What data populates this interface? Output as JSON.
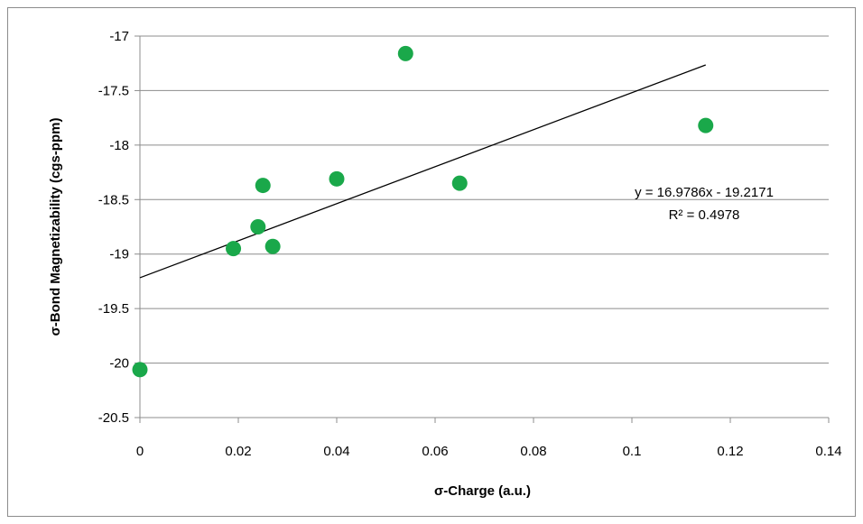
{
  "chart_data": {
    "type": "scatter",
    "title": "",
    "xlabel": "σ-Charge (a.u.)",
    "ylabel": "σ-Bond Magnetizability (cgs-ppm)",
    "xlim": [
      0,
      0.14
    ],
    "ylim": [
      -20.5,
      -17
    ],
    "x_ticks": [
      "0",
      "0.02",
      "0.04",
      "0.06",
      "0.08",
      "0.1",
      "0.12",
      "0.14"
    ],
    "y_ticks": [
      "-17",
      "-17.5",
      "-18",
      "-18.5",
      "-19",
      "-19.5",
      "-20",
      "-20.5"
    ],
    "grid": "horizontal",
    "marker_color": "#1aa84a",
    "series": [
      {
        "points": [
          {
            "x": 0.0,
            "y": -20.06
          },
          {
            "x": 0.019,
            "y": -18.95
          },
          {
            "x": 0.024,
            "y": -18.75
          },
          {
            "x": 0.025,
            "y": -18.37
          },
          {
            "x": 0.027,
            "y": -18.93
          },
          {
            "x": 0.04,
            "y": -18.31
          },
          {
            "x": 0.054,
            "y": -17.16
          },
          {
            "x": 0.065,
            "y": -18.35
          },
          {
            "x": 0.115,
            "y": -17.82
          }
        ]
      }
    ],
    "trendline": {
      "type": "linear",
      "slope": 16.9786,
      "intercept": -19.2171,
      "x_range": [
        0,
        0.115
      ],
      "equation": "y = 16.9786x - 19.2171",
      "r_squared": "R² = 0.4978"
    }
  }
}
